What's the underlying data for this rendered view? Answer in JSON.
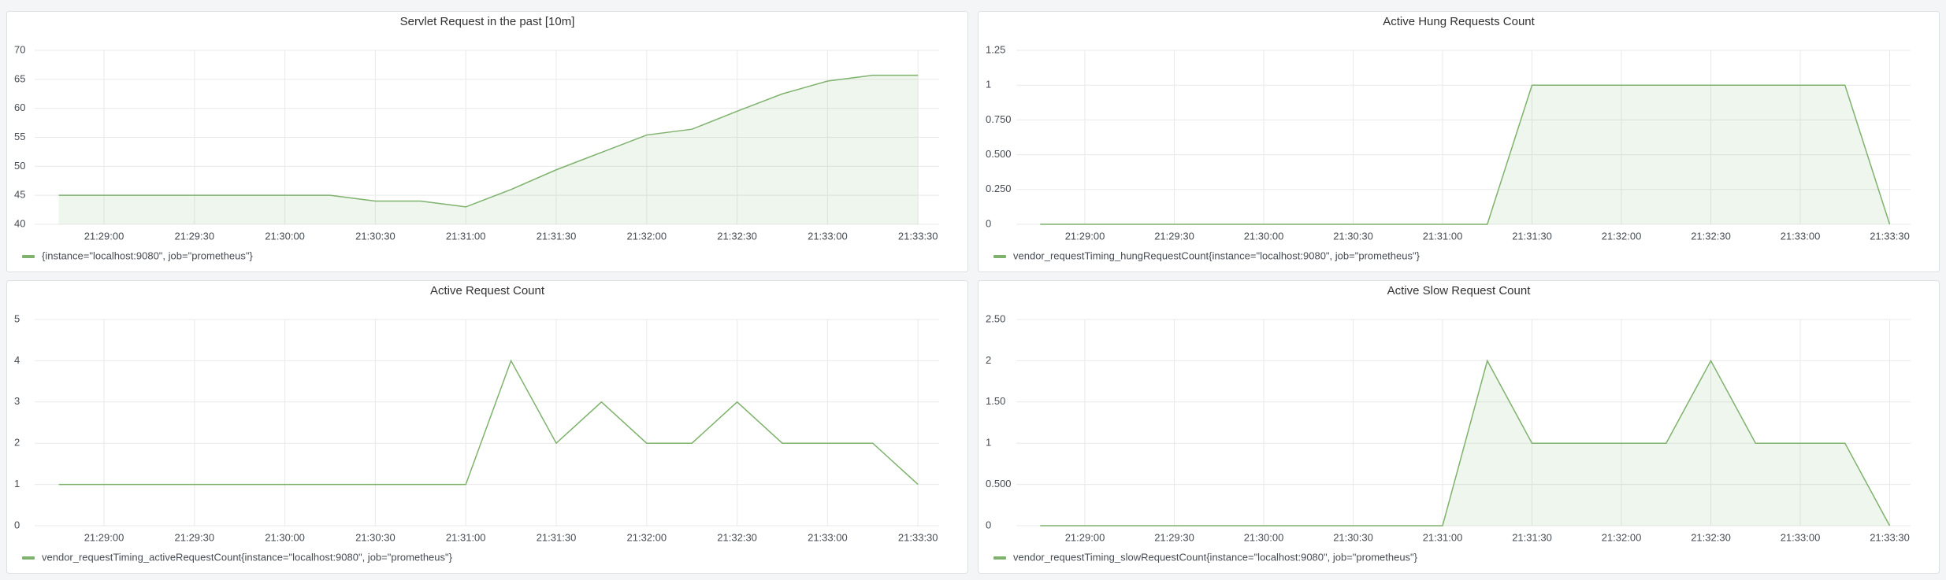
{
  "chart_data": [
    {
      "type": "line",
      "title": "Servlet Request in the past [10m]",
      "area": true,
      "grid": true,
      "x": [
        "21:28:45",
        "21:29:00",
        "21:29:15",
        "21:29:30",
        "21:29:45",
        "21:30:00",
        "21:30:15",
        "21:30:30",
        "21:30:45",
        "21:31:00",
        "21:31:15",
        "21:31:30",
        "21:31:45",
        "21:32:00",
        "21:32:15",
        "21:32:30",
        "21:32:45",
        "21:33:00",
        "21:33:15",
        "21:33:30"
      ],
      "xlim": [
        "21:28:37",
        "21:33:37"
      ],
      "xticks": [
        "21:29:00",
        "21:29:30",
        "21:30:00",
        "21:30:30",
        "21:31:00",
        "21:31:30",
        "21:32:00",
        "21:32:30",
        "21:33:00",
        "21:33:30"
      ],
      "ylim": [
        40,
        70
      ],
      "yticks": [
        40,
        45,
        50,
        55,
        60,
        65,
        70
      ],
      "series": [
        {
          "name": "{instance=\"localhost:9080\", job=\"prometheus\"}",
          "color": "#7eb26d",
          "values": [
            45,
            45,
            45,
            45,
            45,
            45,
            45,
            44,
            44,
            43,
            46,
            49.4,
            52.4,
            55.4,
            56.4,
            59.5,
            62.5,
            64.7,
            65.7,
            65.7
          ]
        }
      ]
    },
    {
      "type": "line",
      "title": "Active Hung Requests Count",
      "area": true,
      "grid": true,
      "x": [
        "21:28:45",
        "21:29:00",
        "21:29:15",
        "21:29:30",
        "21:29:45",
        "21:30:00",
        "21:30:15",
        "21:30:30",
        "21:30:45",
        "21:31:00",
        "21:31:15",
        "21:31:30",
        "21:31:45",
        "21:32:00",
        "21:32:15",
        "21:32:30",
        "21:32:45",
        "21:33:00",
        "21:33:15",
        "21:33:30"
      ],
      "xlim": [
        "21:28:37",
        "21:33:37"
      ],
      "xticks": [
        "21:29:00",
        "21:29:30",
        "21:30:00",
        "21:30:30",
        "21:31:00",
        "21:31:30",
        "21:32:00",
        "21:32:30",
        "21:33:00",
        "21:33:30"
      ],
      "ylim": [
        0,
        1.25
      ],
      "yticks": [
        0,
        {
          "value": 0.25,
          "label": "0.250"
        },
        {
          "value": 0.5,
          "label": "0.500"
        },
        {
          "value": 0.75,
          "label": "0.750"
        },
        1,
        1.25
      ],
      "series": [
        {
          "name": "vendor_requestTiming_hungRequestCount{instance=\"localhost:9080\", job=\"prometheus\"}",
          "color": "#7eb26d",
          "values": [
            0,
            0,
            0,
            0,
            0,
            0,
            0,
            0,
            0,
            0,
            0,
            1,
            1,
            1,
            1,
            1,
            1,
            1,
            1,
            0
          ]
        }
      ]
    },
    {
      "type": "line",
      "title": "Active Request Count",
      "area": false,
      "grid": true,
      "x": [
        "21:28:45",
        "21:29:00",
        "21:29:15",
        "21:29:30",
        "21:29:45",
        "21:30:00",
        "21:30:15",
        "21:30:30",
        "21:30:45",
        "21:31:00",
        "21:31:15",
        "21:31:30",
        "21:31:45",
        "21:32:00",
        "21:32:15",
        "21:32:30",
        "21:32:45",
        "21:33:00",
        "21:33:15",
        "21:33:30"
      ],
      "xlim": [
        "21:28:37",
        "21:33:37"
      ],
      "xticks": [
        "21:29:00",
        "21:29:30",
        "21:30:00",
        "21:30:30",
        "21:31:00",
        "21:31:30",
        "21:32:00",
        "21:32:30",
        "21:33:00",
        "21:33:30"
      ],
      "ylim": [
        0,
        5
      ],
      "yticks": [
        0,
        1,
        2,
        3,
        4,
        5
      ],
      "series": [
        {
          "name": "vendor_requestTiming_activeRequestCount{instance=\"localhost:9080\", job=\"prometheus\"}",
          "color": "#7eb26d",
          "values": [
            1,
            1,
            1,
            1,
            1,
            1,
            1,
            1,
            1,
            1,
            4,
            2,
            3,
            2,
            2,
            3,
            2,
            2,
            2,
            1
          ]
        }
      ]
    },
    {
      "type": "line",
      "title": "Active Slow Request Count",
      "area": true,
      "grid": true,
      "x": [
        "21:28:45",
        "21:29:00",
        "21:29:15",
        "21:29:30",
        "21:29:45",
        "21:30:00",
        "21:30:15",
        "21:30:30",
        "21:30:45",
        "21:31:00",
        "21:31:15",
        "21:31:30",
        "21:31:45",
        "21:32:00",
        "21:32:15",
        "21:32:30",
        "21:32:45",
        "21:33:00",
        "21:33:15",
        "21:33:30"
      ],
      "xlim": [
        "21:28:37",
        "21:33:37"
      ],
      "xticks": [
        "21:29:00",
        "21:29:30",
        "21:30:00",
        "21:30:30",
        "21:31:00",
        "21:31:30",
        "21:32:00",
        "21:32:30",
        "21:33:00",
        "21:33:30"
      ],
      "ylim": [
        0,
        2.5
      ],
      "yticks": [
        0,
        {
          "value": 0.5,
          "label": "0.500"
        },
        1,
        {
          "value": 1.5,
          "label": "1.50"
        },
        2,
        {
          "value": 2.5,
          "label": "2.50"
        }
      ],
      "series": [
        {
          "name": "vendor_requestTiming_slowRequestCount{instance=\"localhost:9080\", job=\"prometheus\"}",
          "color": "#7eb26d",
          "values": [
            0,
            0,
            0,
            0,
            0,
            0,
            0,
            0,
            0,
            0,
            2,
            1,
            1,
            1,
            1,
            2,
            1,
            1,
            1,
            0
          ]
        }
      ]
    }
  ]
}
